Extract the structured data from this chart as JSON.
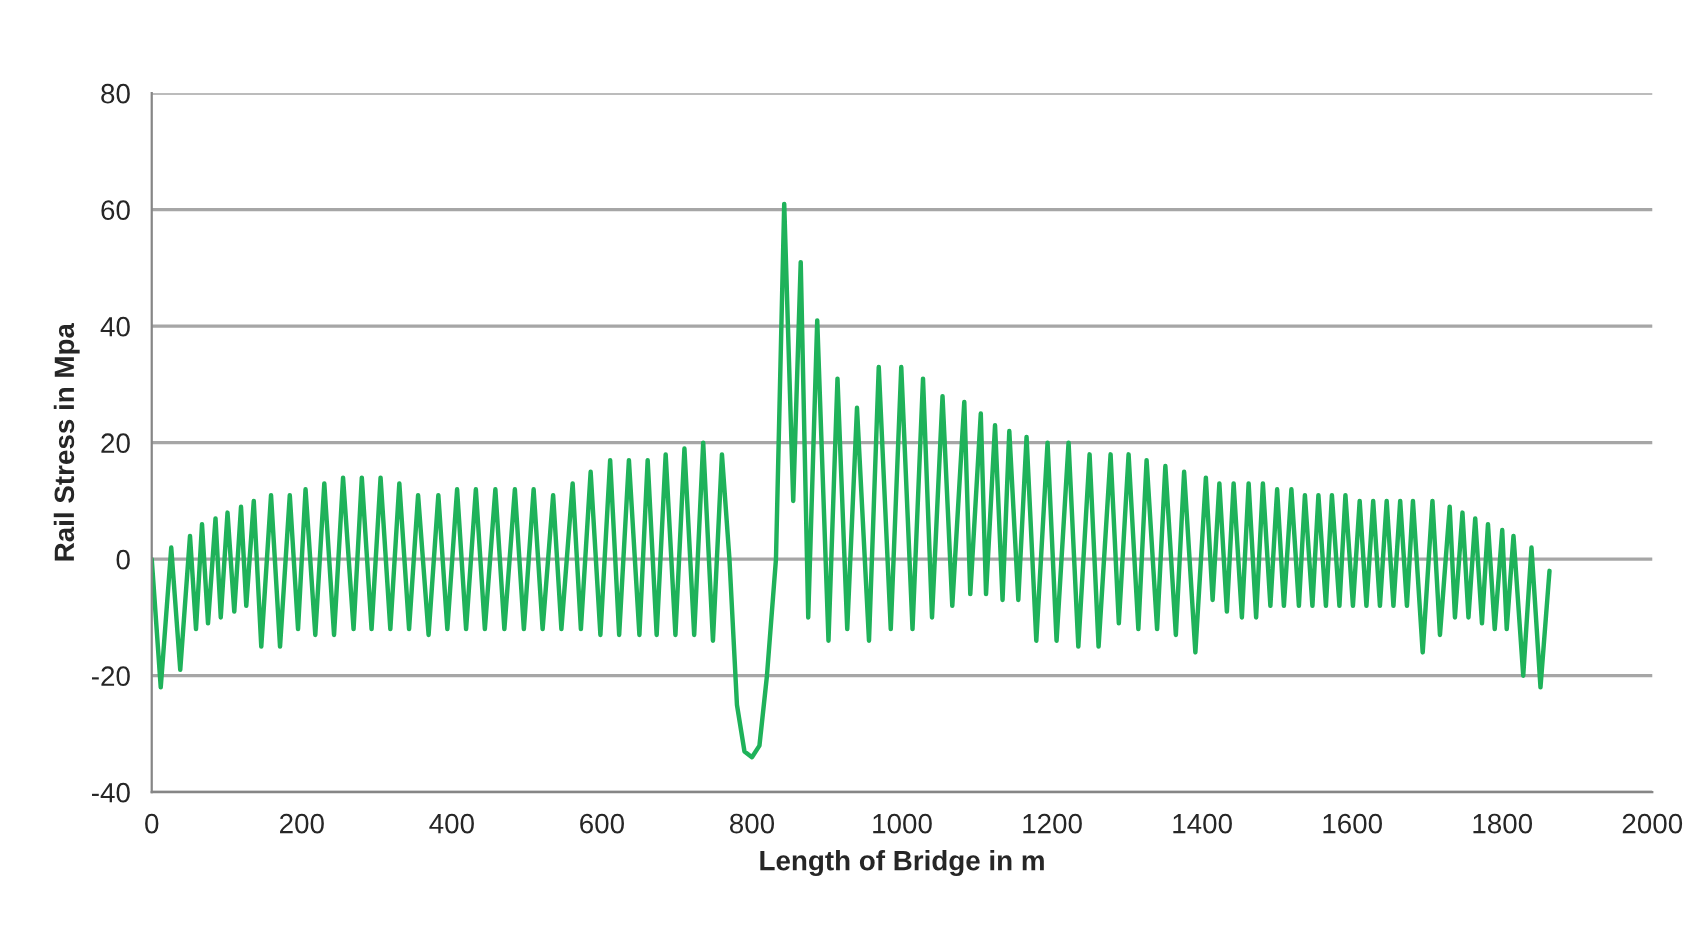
{
  "chart_data": {
    "type": "line",
    "xlabel": "Length of Bridge in m",
    "ylabel": "Rail Stress in Mpa",
    "xlim": [
      0,
      2000
    ],
    "xticks": [
      0,
      200,
      400,
      600,
      800,
      1000,
      1200,
      1400,
      1600,
      1800,
      2000
    ],
    "ylim": [
      -40,
      80
    ],
    "yticks": [
      -40,
      -20,
      0,
      20,
      40,
      60,
      80
    ],
    "grid": "y",
    "legend": false,
    "marker": "none",
    "line_style": "solid",
    "series": [
      {
        "color": "#1fb25a",
        "x": [
          0,
          12,
          26,
          38,
          51,
          59,
          67,
          75,
          85,
          92,
          101,
          110,
          119,
          126,
          136,
          146,
          159,
          171,
          184,
          195,
          205,
          218,
          230,
          243,
          255,
          269,
          280,
          293,
          305,
          318,
          330,
          343,
          355,
          369,
          382,
          394,
          407,
          419,
          432,
          444,
          458,
          470,
          484,
          496,
          509,
          521,
          535,
          546,
          561,
          572,
          585,
          598,
          611,
          623,
          636,
          650,
          661,
          673,
          685,
          698,
          710,
          723,
          735,
          748,
          760,
          770,
          780,
          790,
          800,
          810,
          820,
          832,
          843,
          855,
          865,
          875,
          887,
          902,
          914,
          927,
          940,
          956,
          969,
          985,
          999,
          1014,
          1028,
          1040,
          1054,
          1067,
          1083,
          1091,
          1105,
          1112,
          1124,
          1134,
          1143,
          1155,
          1166,
          1179,
          1194,
          1206,
          1222,
          1235,
          1250,
          1262,
          1278,
          1289,
          1302,
          1315,
          1326,
          1340,
          1351,
          1365,
          1376,
          1391,
          1405,
          1414,
          1423,
          1433,
          1442,
          1453,
          1462,
          1472,
          1481,
          1491,
          1500,
          1509,
          1519,
          1529,
          1537,
          1547,
          1555,
          1565,
          1573,
          1583,
          1591,
          1601,
          1610,
          1619,
          1628,
          1637,
          1646,
          1655,
          1664,
          1673,
          1681,
          1694,
          1707,
          1717,
          1730,
          1737,
          1747,
          1755,
          1764,
          1773,
          1781,
          1790,
          1800,
          1806,
          1815,
          1828,
          1839,
          1851,
          1863
        ],
        "values": [
          0,
          -22,
          2,
          -19,
          4,
          -12,
          6,
          -11,
          7,
          -10,
          8,
          -9,
          9,
          -8,
          10,
          -15,
          11,
          -15,
          11,
          -12,
          12,
          -13,
          13,
          -13,
          14,
          -12,
          14,
          -12,
          14,
          -12,
          13,
          -12,
          11,
          -13,
          11,
          -12,
          12,
          -12,
          12,
          -12,
          12,
          -12,
          12,
          -12,
          12,
          -12,
          11,
          -12,
          13,
          -12,
          15,
          -13,
          17,
          -13,
          17,
          -13,
          17,
          -13,
          18,
          -13,
          19,
          -13,
          20,
          -14,
          18,
          0,
          -25,
          -33,
          -34,
          -32,
          -20,
          0,
          61,
          10,
          51,
          -10,
          41,
          -14,
          31,
          -12,
          26,
          -14,
          33,
          -12,
          33,
          -12,
          31,
          -10,
          28,
          -8,
          27,
          -6,
          25,
          -6,
          23,
          -7,
          22,
          -7,
          21,
          -14,
          20,
          -14,
          20,
          -15,
          18,
          -15,
          18,
          -11,
          18,
          -12,
          17,
          -12,
          16,
          -13,
          15,
          -16,
          14,
          -7,
          13,
          -9,
          13,
          -10,
          13,
          -10,
          13,
          -8,
          12,
          -8,
          12,
          -8,
          11,
          -8,
          11,
          -8,
          11,
          -8,
          11,
          -8,
          10,
          -8,
          10,
          -8,
          10,
          -8,
          10,
          -8,
          10,
          -16,
          10,
          -13,
          9,
          -10,
          8,
          -10,
          7,
          -11,
          6,
          -12,
          5,
          -12,
          4,
          -20,
          2,
          -22,
          -2
        ]
      }
    ]
  }
}
